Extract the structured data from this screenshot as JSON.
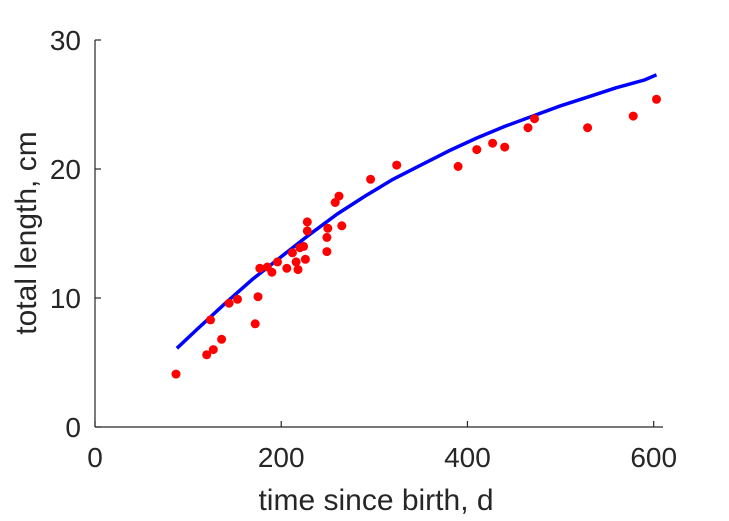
{
  "chart_data": {
    "type": "scatter",
    "xlabel": "time since birth, d",
    "ylabel": "total length, cm",
    "xlim": [
      0,
      610
    ],
    "ylim": [
      0,
      30
    ],
    "xticks": [
      0,
      200,
      400,
      600
    ],
    "yticks": [
      0,
      10,
      20,
      30
    ],
    "grid": false,
    "legend": "none",
    "colors": {
      "points": "#ff0000",
      "fit": "#0000ff",
      "axis": "#262626"
    },
    "points": {
      "x": [
        87,
        120,
        124,
        127,
        136,
        144,
        153,
        172,
        175,
        177,
        185,
        190,
        196,
        206,
        212,
        216,
        218,
        220,
        224,
        226,
        228,
        228,
        249,
        249,
        250,
        258,
        262,
        265,
        296,
        324,
        390,
        410,
        427,
        440,
        465,
        472,
        529,
        578,
        603
      ],
      "y": [
        4.1,
        5.6,
        8.3,
        6.0,
        6.8,
        9.6,
        9.9,
        8.0,
        10.1,
        12.3,
        12.4,
        12.0,
        12.8,
        12.3,
        13.5,
        12.8,
        12.2,
        13.9,
        14.0,
        13.0,
        15.9,
        15.2,
        13.6,
        14.7,
        15.4,
        17.4,
        17.9,
        15.6,
        19.2,
        20.3,
        20.2,
        21.5,
        22.0,
        21.7,
        23.2,
        23.9,
        23.2,
        24.1,
        25.4
      ]
    },
    "fit": {
      "x": [
        88,
        110,
        140,
        170,
        200,
        230,
        260,
        290,
        320,
        350,
        380,
        410,
        440,
        470,
        500,
        530,
        560,
        590,
        603
      ],
      "y": [
        6.1,
        7.6,
        9.6,
        11.5,
        13.2,
        14.9,
        16.5,
        17.9,
        19.2,
        20.3,
        21.4,
        22.4,
        23.3,
        24.1,
        24.9,
        25.6,
        26.3,
        26.9,
        27.3
      ]
    }
  }
}
